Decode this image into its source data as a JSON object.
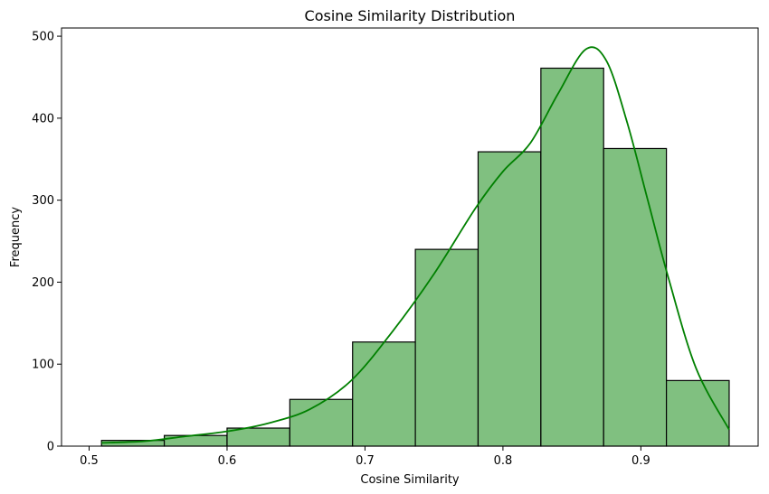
{
  "chart_data": {
    "type": "histogram",
    "title": "Cosine Similarity Distribution",
    "xlabel": "Cosine Similarity",
    "ylabel": "Frequency",
    "xlim": [
      0.48,
      0.985
    ],
    "ylim": [
      0,
      510
    ],
    "xticks": [
      {
        "value": 0.5,
        "label": "0.5"
      },
      {
        "value": 0.6,
        "label": "0.6"
      },
      {
        "value": 0.7,
        "label": "0.7"
      },
      {
        "value": 0.8,
        "label": "0.8"
      },
      {
        "value": 0.9,
        "label": "0.9"
      }
    ],
    "yticks": [
      {
        "value": 0,
        "label": "0"
      },
      {
        "value": 100,
        "label": "100"
      },
      {
        "value": 200,
        "label": "200"
      },
      {
        "value": 300,
        "label": "300"
      },
      {
        "value": 400,
        "label": "400"
      },
      {
        "value": 500,
        "label": "500"
      }
    ],
    "bin_edges": [
      0.509,
      0.5545,
      0.6,
      0.6455,
      0.691,
      0.7365,
      0.782,
      0.8275,
      0.873,
      0.9185,
      0.964
    ],
    "counts": [
      7,
      13,
      22,
      57,
      127,
      240,
      359,
      461,
      363,
      80
    ],
    "kde": {
      "x": [
        0.509,
        0.54,
        0.57,
        0.6,
        0.63,
        0.66,
        0.69,
        0.72,
        0.75,
        0.78,
        0.8,
        0.82,
        0.84,
        0.86,
        0.875,
        0.89,
        0.905,
        0.92,
        0.94,
        0.964
      ],
      "y": [
        4,
        6,
        12,
        18,
        28,
        45,
        80,
        140,
        210,
        290,
        335,
        370,
        430,
        484,
        470,
        395,
        300,
        205,
        95,
        20
      ]
    },
    "colors": {
      "bar_fill": "#80c080",
      "bar_edge": "#000000",
      "kde_line": "#008000",
      "axis": "#000000"
    },
    "grid": false,
    "legend": "none"
  }
}
